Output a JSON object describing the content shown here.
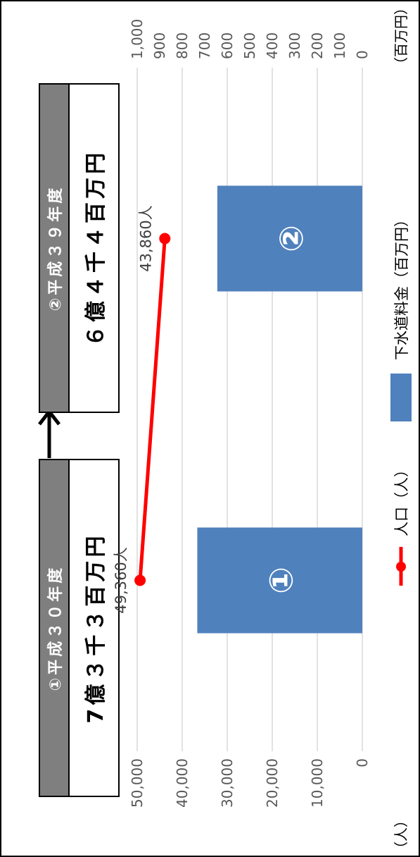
{
  "box1": {
    "title": "①平成３０年度",
    "amount": "7億３千３百万円"
  },
  "box2": {
    "title": "②平成３９年度",
    "amount": "６億４千４百万円"
  },
  "legend": {
    "line_label": "人口（人）",
    "bar_label": "下水道料金（百万円）"
  },
  "axes": {
    "left_unit": "（人）",
    "right_unit": "（百万円）"
  },
  "colors": {
    "bar": "#4f81bd",
    "line": "#ff0000",
    "grid": "#d9d9d9",
    "header": "#7f7f7f"
  },
  "chart_data": {
    "type": "bar+line",
    "categories": [
      "①",
      "②"
    ],
    "series": [
      {
        "name": "下水道料金（百万円）",
        "type": "bar",
        "axis": "right",
        "values": [
          733,
          644
        ]
      },
      {
        "name": "人口（人）",
        "type": "line",
        "axis": "left",
        "values": [
          49360,
          43860
        ],
        "labels": [
          "49,360人",
          "43,860人"
        ]
      }
    ],
    "left_axis": {
      "range": [
        0,
        50000
      ],
      "ticks": [
        "0",
        "10,000",
        "20,000",
        "30,000",
        "40,000",
        "50,000"
      ]
    },
    "right_axis": {
      "range": [
        0,
        1000
      ],
      "ticks": [
        "0",
        "100",
        "200",
        "300",
        "400",
        "500",
        "600",
        "700",
        "800",
        "900",
        "1,000"
      ]
    },
    "grid": true,
    "legend_position": "bottom"
  }
}
